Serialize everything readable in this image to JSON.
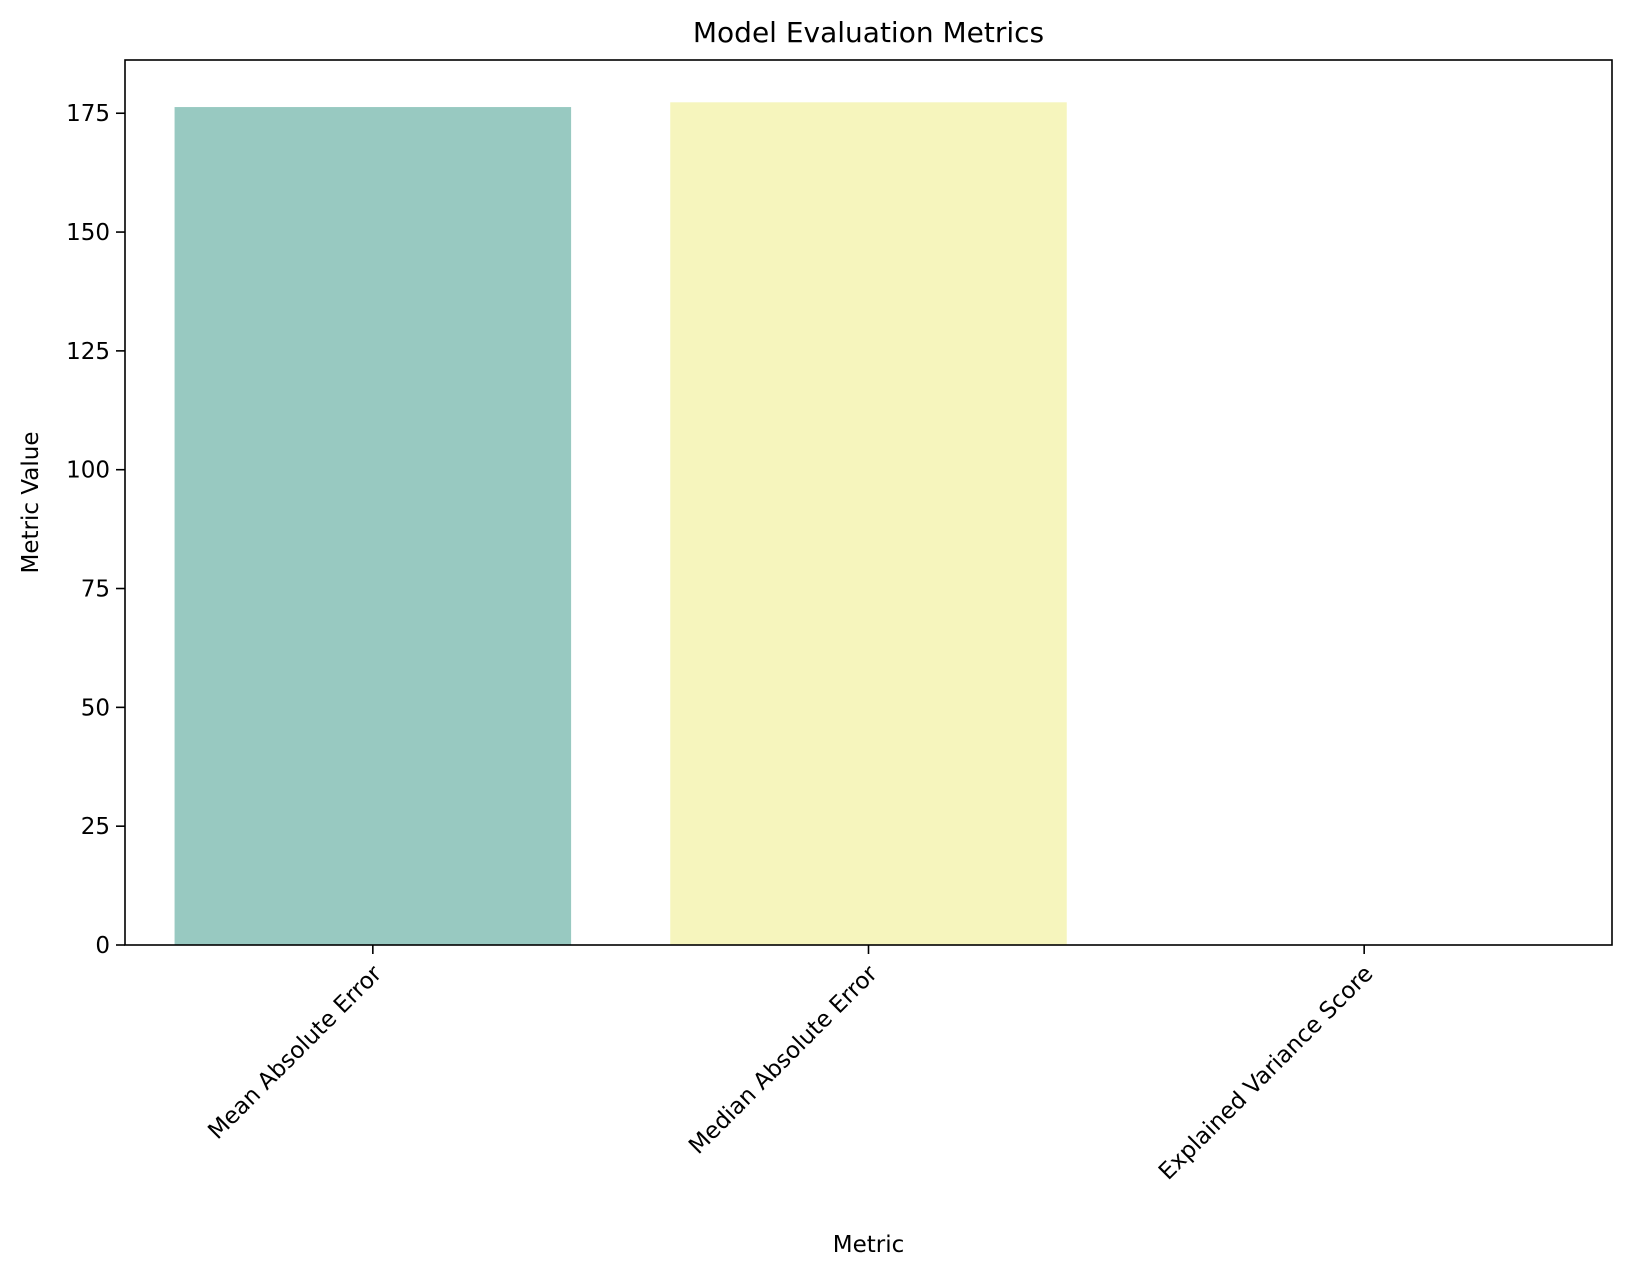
{
  "chart_data": {
    "type": "bar",
    "title": "Model Evaluation Metrics",
    "xlabel": "Metric",
    "ylabel": "Metric Value",
    "categories": [
      "Mean Absolute Error",
      "Median Absolute Error",
      "Explained Variance Score"
    ],
    "values": [
      176.3,
      177.3,
      0.0
    ],
    "colors": [
      "#98c9c1",
      "#f6f5bd",
      "#ffffff"
    ],
    "ylim": [
      0,
      186.2
    ],
    "yticks": [
      0,
      25,
      50,
      75,
      100,
      125,
      150,
      175
    ],
    "grid": false,
    "legend": "none"
  }
}
